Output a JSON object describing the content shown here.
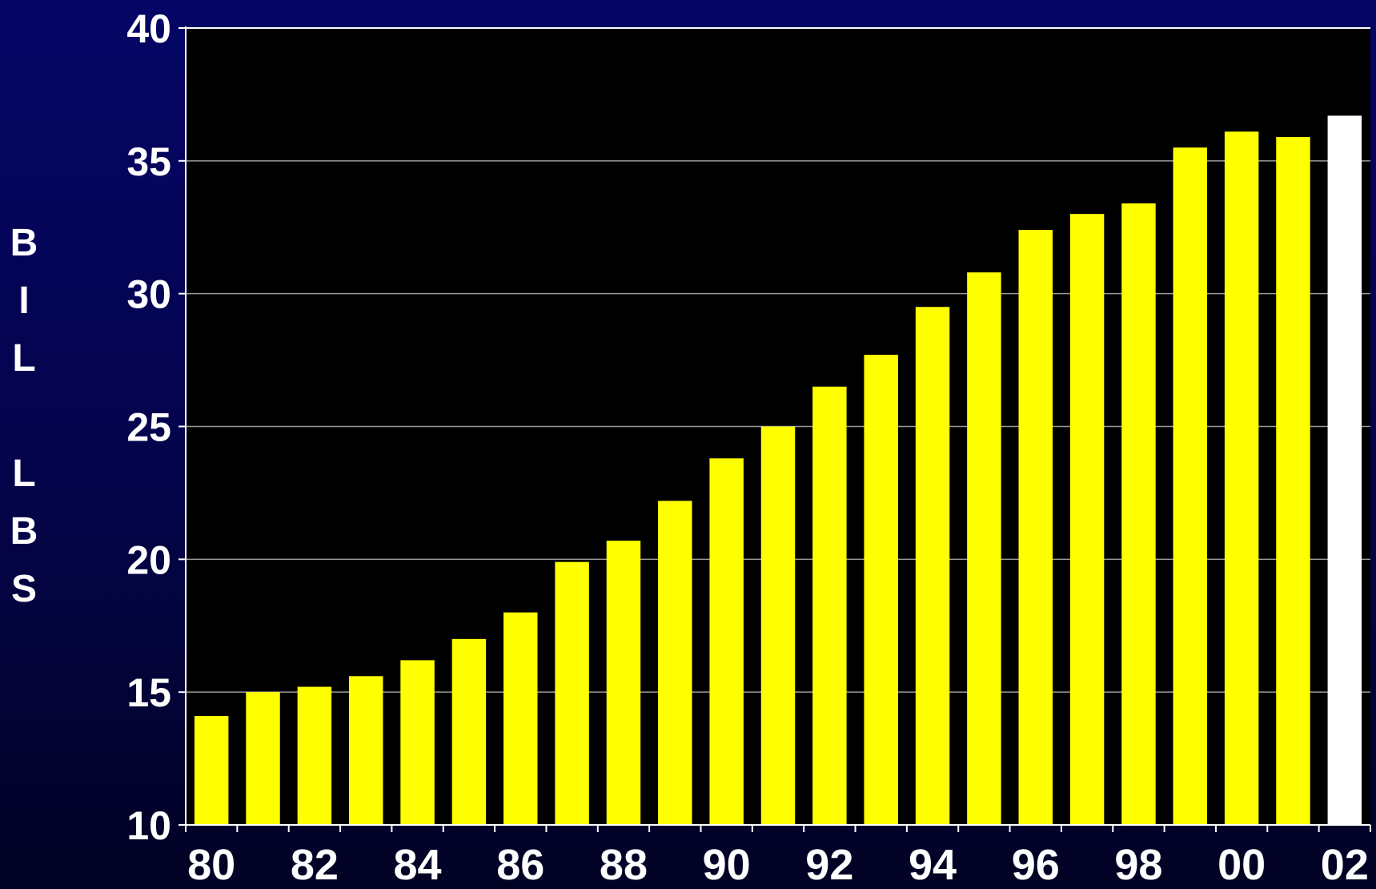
{
  "chart_data": {
    "type": "bar",
    "title": "",
    "xlabel": "",
    "ylabel": "BIL LBS",
    "ylim": [
      10,
      40
    ],
    "yticks": [
      10,
      15,
      20,
      25,
      30,
      35,
      40
    ],
    "xtick_labels": [
      "80",
      "82",
      "84",
      "86",
      "88",
      "90",
      "92",
      "94",
      "96",
      "98",
      "00",
      "02"
    ],
    "categories": [
      "80",
      "81",
      "82",
      "83",
      "84",
      "85",
      "86",
      "87",
      "88",
      "89",
      "90",
      "91",
      "92",
      "93",
      "94",
      "95",
      "96",
      "97",
      "98",
      "99",
      "00",
      "01",
      "02"
    ],
    "values": [
      14.1,
      15.0,
      15.2,
      15.6,
      16.2,
      17.0,
      18.0,
      19.9,
      20.7,
      22.2,
      23.8,
      25.0,
      26.5,
      27.7,
      29.5,
      30.8,
      32.4,
      33.0,
      33.4,
      35.5,
      36.1,
      35.9,
      36.7
    ],
    "highlight_index": 22,
    "grid": true,
    "colors": {
      "bar": "#ffff00",
      "highlight_bar": "#ffffff",
      "plot_background": "#000000",
      "gridline": "#9a9a9a",
      "axis": "#ffffff",
      "text": "#ffffff"
    }
  },
  "ylabel_letters": [
    "B",
    "I",
    "L",
    "",
    "L",
    "B",
    "S"
  ]
}
